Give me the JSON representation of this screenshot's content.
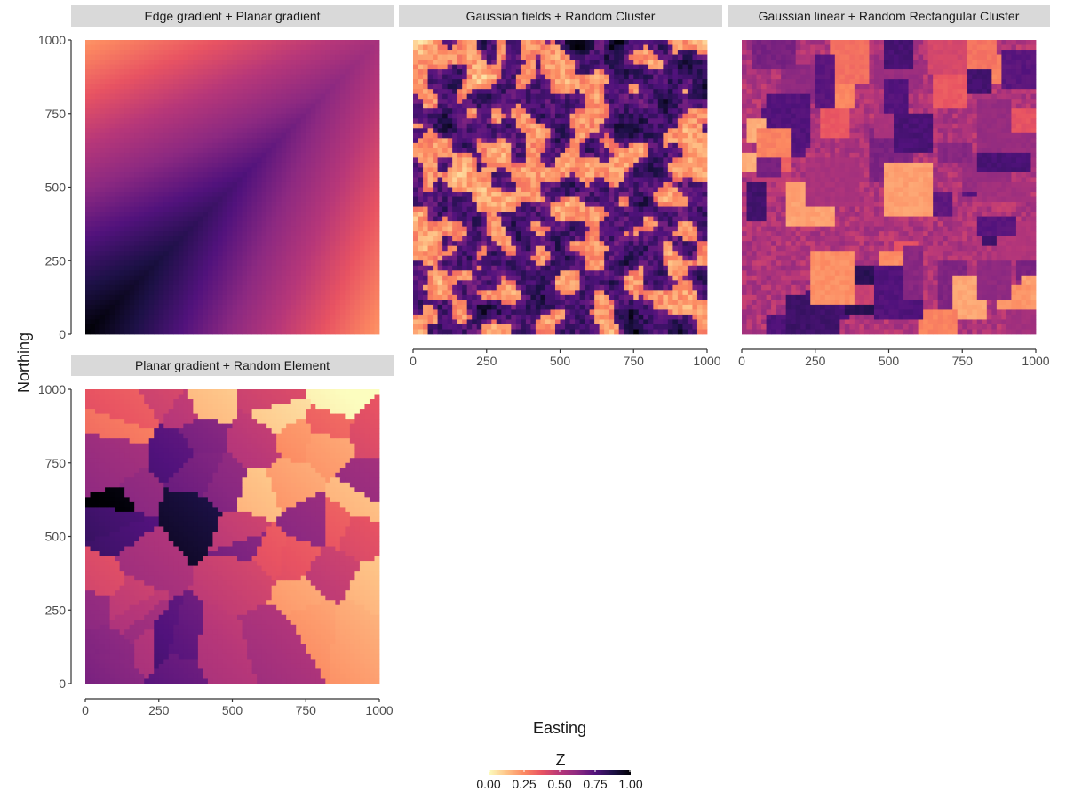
{
  "chart_data": {
    "type": "heatmap",
    "facet_layout": "3 columns x 2 rows",
    "panels": [
      {
        "title": "Edge gradient + Planar gradient",
        "pattern": "edge_planar",
        "seed": 11
      },
      {
        "title": "Gaussian fields + Random Cluster",
        "pattern": "gaussian_cluster",
        "seed": 23
      },
      {
        "title": "Gaussian linear + Random Rectangular Cluster",
        "pattern": "rect_cluster",
        "seed": 37
      },
      {
        "title": "Planar gradient + Random Element",
        "pattern": "voronoi",
        "seed": 51
      }
    ],
    "x": {
      "label": "Easting",
      "range": [
        0,
        1000
      ],
      "ticks": [
        0,
        250,
        500,
        750,
        1000
      ],
      "tick_labels": [
        "0",
        "250",
        "500",
        "750",
        "1000"
      ]
    },
    "y": {
      "label": "Northing",
      "range": [
        0,
        1000
      ],
      "ticks": [
        0,
        250,
        500,
        750,
        1000
      ],
      "tick_labels": [
        "0",
        "250",
        "500",
        "750",
        "1000"
      ]
    },
    "legend": {
      "title": "Z",
      "position": "bottom",
      "range": [
        0,
        1
      ],
      "ticks": [
        0,
        0.25,
        0.5,
        0.75,
        1
      ],
      "tick_labels": [
        "0.00",
        "0.25",
        "0.50",
        "0.75",
        "1.00"
      ],
      "palette": "magma (reversed)",
      "colors": [
        "#FCFDBF",
        "#FEC488",
        "#FC8961",
        "#E85362",
        "#B73779",
        "#8C2981",
        "#51127C",
        "#1D1147",
        "#000004"
      ]
    },
    "grid": false
  }
}
